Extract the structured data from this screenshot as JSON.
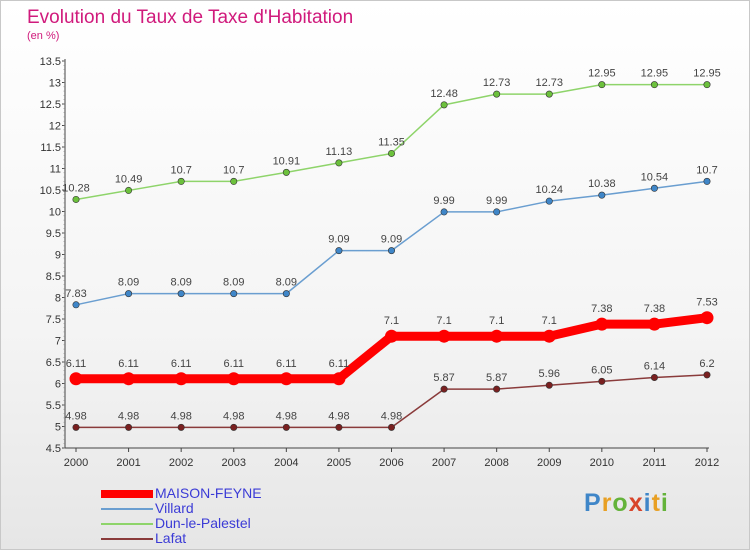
{
  "title": "Evolution du Taux de Taxe d'Habitation",
  "unit_label": "(en %)",
  "logo": {
    "letters": [
      {
        "char": "P",
        "color": "#3f86c8"
      },
      {
        "char": "r",
        "color": "#e8a024"
      },
      {
        "char": "o",
        "color": "#64b33a"
      },
      {
        "char": "x",
        "color": "#d8442a"
      },
      {
        "char": "i",
        "color": "#3f86c8"
      },
      {
        "char": "t",
        "color": "#e8a024"
      },
      {
        "char": "i",
        "color": "#64b33a"
      }
    ]
  },
  "chart_data": {
    "type": "line",
    "x": [
      "2000",
      "2001",
      "2002",
      "2003",
      "2004",
      "2005",
      "2006",
      "2007",
      "2008",
      "2009",
      "2010",
      "2011",
      "2012"
    ],
    "ylim": [
      4.5,
      13.5
    ],
    "yticks": [
      "4.5",
      "5",
      "5.5",
      "6",
      "6.5",
      "7",
      "7.5",
      "8",
      "8.5",
      "9",
      "9.5",
      "10",
      "10.5",
      "11",
      "11.5",
      "12",
      "12.5",
      "13",
      "13.5"
    ],
    "legend_position": "bottom-left",
    "grid": false,
    "series": [
      {
        "name": "Dun-le-Palestel",
        "color": "#8ed46a",
        "point_color": "#6cc13c",
        "values": [
          10.28,
          10.49,
          10.7,
          10.7,
          10.91,
          11.13,
          11.35,
          12.48,
          12.73,
          12.73,
          12.95,
          12.95,
          12.95
        ],
        "labels": [
          "10.28",
          "10.49",
          "10.7",
          "10.7",
          "10.91",
          "11.13",
          "11.35",
          "12.48",
          "12.73",
          "12.73",
          "12.95",
          "12.95",
          "12.95"
        ]
      },
      {
        "name": "Villard",
        "color": "#6a9ed0",
        "point_color": "#3f86c8",
        "values": [
          7.83,
          8.09,
          8.09,
          8.09,
          8.09,
          9.09,
          9.09,
          9.99,
          9.99,
          10.24,
          10.38,
          10.54,
          10.7
        ],
        "labels": [
          "7.83",
          "8.09",
          "8.09",
          "8.09",
          "8.09",
          "9.09",
          "9.09",
          "9.99",
          "9.99",
          "10.24",
          "10.38",
          "10.54",
          "10.7"
        ]
      },
      {
        "name": "MAISON-FEYNE",
        "color": "#ff0000",
        "point_color": "#ff0000",
        "bold": true,
        "values": [
          6.11,
          6.11,
          6.11,
          6.11,
          6.11,
          6.11,
          7.1,
          7.1,
          7.1,
          7.1,
          7.38,
          7.38,
          7.53
        ],
        "labels": [
          "6.11",
          "6.11",
          "6.11",
          "6.11",
          "6.11",
          "6.11",
          "7.1",
          "7.1",
          "7.1",
          "7.1",
          "7.38",
          "7.38",
          "7.53"
        ]
      },
      {
        "name": "Lafat",
        "color": "#8a3b3b",
        "point_color": "#7a2020",
        "values": [
          4.98,
          4.98,
          4.98,
          4.98,
          4.98,
          4.98,
          4.98,
          5.87,
          5.87,
          5.96,
          6.05,
          6.14,
          6.2
        ],
        "labels": [
          "4.98",
          "4.98",
          "4.98",
          "4.98",
          "4.98",
          "4.98",
          "4.98",
          "5.87",
          "5.87",
          "5.96",
          "6.05",
          "6.14",
          "6.2"
        ]
      }
    ],
    "legend_order": [
      "MAISON-FEYNE",
      "Villard",
      "Dun-le-Palestel",
      "Lafat"
    ]
  }
}
